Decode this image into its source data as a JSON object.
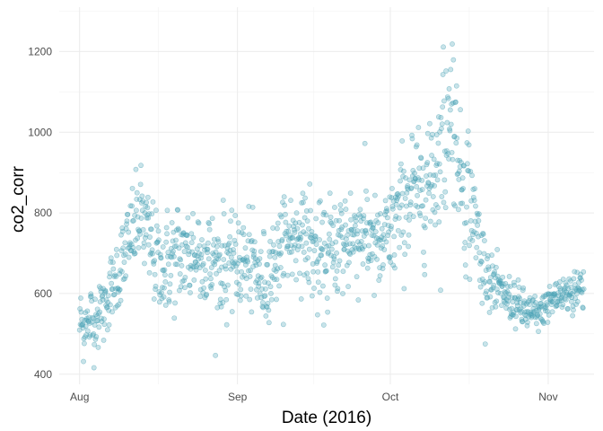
{
  "chart_data": {
    "type": "scatter",
    "title": "",
    "xlabel": "Date (2016)",
    "ylabel": "co2_corr",
    "x_range": [
      "2016-07-28",
      "2016-11-10"
    ],
    "ylim": [
      375,
      1310
    ],
    "x_ticks": [
      {
        "date": "2016-08-01",
        "label": "Aug"
      },
      {
        "date": "2016-09-01",
        "label": "Sep"
      },
      {
        "date": "2016-10-01",
        "label": "Oct"
      },
      {
        "date": "2016-11-01",
        "label": "Nov"
      }
    ],
    "y_ticks": [
      400,
      600,
      800,
      1000,
      1200
    ],
    "grid": true,
    "point_color": "#4aa3b5",
    "point_fill_opacity": 0.3,
    "series_profile": [
      {
        "date": "2016-08-01",
        "mean": 520,
        "spread": 45
      },
      {
        "date": "2016-08-04",
        "mean": 535,
        "spread": 50
      },
      {
        "date": "2016-08-07",
        "mean": 600,
        "spread": 55
      },
      {
        "date": "2016-08-09",
        "mean": 660,
        "spread": 60
      },
      {
        "date": "2016-08-11",
        "mean": 740,
        "spread": 65
      },
      {
        "date": "2016-08-13",
        "mean": 800,
        "spread": 70
      },
      {
        "date": "2016-08-15",
        "mean": 720,
        "spread": 70
      },
      {
        "date": "2016-08-17",
        "mean": 660,
        "spread": 70
      },
      {
        "date": "2016-08-20",
        "mean": 690,
        "spread": 75
      },
      {
        "date": "2016-08-24",
        "mean": 700,
        "spread": 75
      },
      {
        "date": "2016-08-28",
        "mean": 670,
        "spread": 75
      },
      {
        "date": "2016-09-01",
        "mean": 680,
        "spread": 75
      },
      {
        "date": "2016-09-04",
        "mean": 670,
        "spread": 70
      },
      {
        "date": "2016-09-06",
        "mean": 620,
        "spread": 70
      },
      {
        "date": "2016-09-08",
        "mean": 680,
        "spread": 75
      },
      {
        "date": "2016-09-11",
        "mean": 740,
        "spread": 80
      },
      {
        "date": "2016-09-14",
        "mean": 750,
        "spread": 80
      },
      {
        "date": "2016-09-17",
        "mean": 680,
        "spread": 80
      },
      {
        "date": "2016-09-20",
        "mean": 710,
        "spread": 80
      },
      {
        "date": "2016-09-23",
        "mean": 740,
        "spread": 80
      },
      {
        "date": "2016-09-26",
        "mean": 760,
        "spread": 85
      },
      {
        "date": "2016-09-29",
        "mean": 700,
        "spread": 75
      },
      {
        "date": "2016-10-02",
        "mean": 780,
        "spread": 80
      },
      {
        "date": "2016-10-05",
        "mean": 850,
        "spread": 90
      },
      {
        "date": "2016-10-08",
        "mean": 860,
        "spread": 90
      },
      {
        "date": "2016-10-11",
        "mean": 950,
        "spread": 140
      },
      {
        "date": "2016-10-13",
        "mean": 1080,
        "spread": 140
      },
      {
        "date": "2016-10-15",
        "mean": 880,
        "spread": 110
      },
      {
        "date": "2016-10-17",
        "mean": 820,
        "spread": 110
      },
      {
        "date": "2016-10-19",
        "mean": 680,
        "spread": 60
      },
      {
        "date": "2016-10-21",
        "mean": 620,
        "spread": 45
      },
      {
        "date": "2016-10-24",
        "mean": 590,
        "spread": 35
      },
      {
        "date": "2016-10-27",
        "mean": 560,
        "spread": 30
      },
      {
        "date": "2016-10-30",
        "mean": 545,
        "spread": 30
      },
      {
        "date": "2016-11-02",
        "mean": 590,
        "spread": 30
      },
      {
        "date": "2016-11-05",
        "mean": 600,
        "spread": 35
      },
      {
        "date": "2016-11-08",
        "mean": 620,
        "spread": 35
      }
    ],
    "observation_count": 1300
  }
}
